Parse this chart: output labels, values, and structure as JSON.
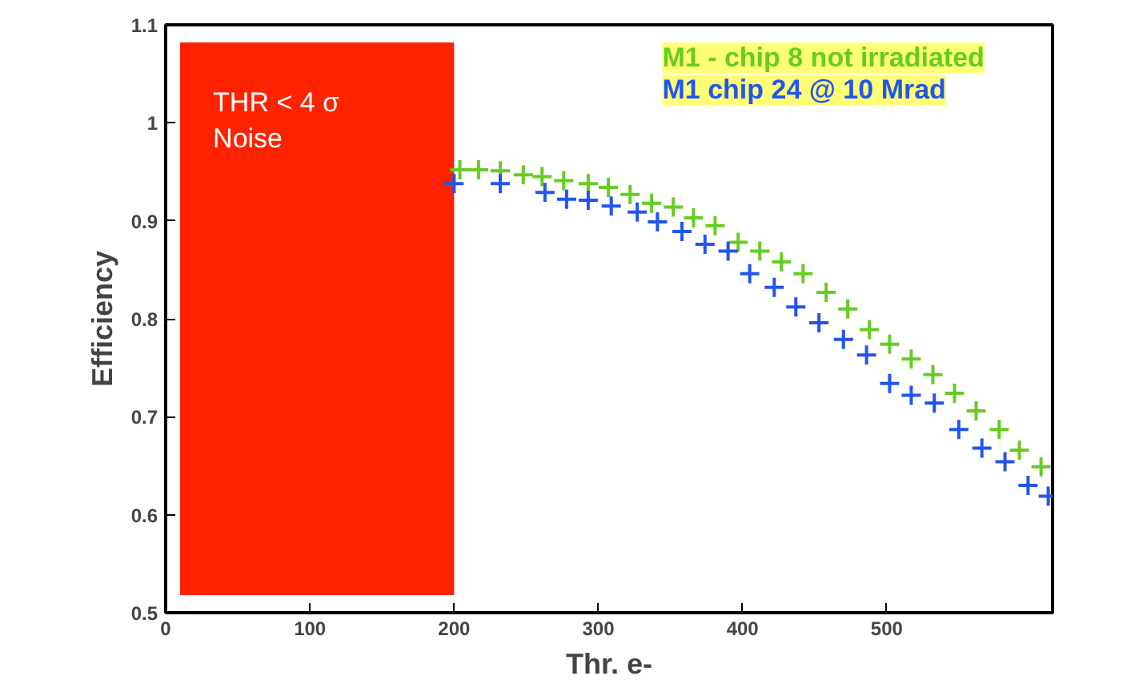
{
  "chart_data": {
    "type": "scatter",
    "xlabel": "Thr. e-",
    "ylabel": "Efficiency",
    "xlim": [
      0,
      615
    ],
    "ylim": [
      0.5,
      1.1
    ],
    "xticks": [
      0,
      100,
      200,
      300,
      400,
      500
    ],
    "yticks": [
      0.5,
      0.6,
      0.7,
      0.8,
      0.9,
      {
        "value": 1.0,
        "label": "1"
      },
      1.1
    ],
    "marker": "cross",
    "grid": false,
    "legend": "top right",
    "bands": [
      {
        "axis": "x",
        "from": 10,
        "to": 200,
        "label": "THR < 4 σ\nNoise",
        "color": "#ff2200"
      }
    ],
    "series": [
      {
        "name": "M1 - chip 8 not irradiated",
        "color": "#66cc22",
        "x": [
          204,
          217,
          232,
          248,
          261,
          276,
          293,
          307,
          322,
          337,
          352,
          366,
          381,
          397,
          412,
          427,
          442,
          458,
          473,
          488,
          502,
          517,
          532,
          547,
          562,
          578,
          592,
          607
        ],
        "values": [
          0.952,
          0.952,
          0.951,
          0.947,
          0.945,
          0.941,
          0.938,
          0.934,
          0.927,
          0.918,
          0.914,
          0.903,
          0.895,
          0.878,
          0.869,
          0.858,
          0.846,
          0.827,
          0.81,
          0.789,
          0.774,
          0.759,
          0.743,
          0.724,
          0.706,
          0.687,
          0.666,
          0.649
        ]
      },
      {
        "name": "M1 chip 24 @ 10 Mrad",
        "color": "#2255ee",
        "x": [
          200,
          232,
          263,
          278,
          293,
          309,
          327,
          341,
          358,
          374,
          390,
          405,
          422,
          437,
          453,
          470,
          486,
          502,
          517,
          533,
          550,
          566,
          582,
          598,
          612
        ],
        "values": [
          0.938,
          0.938,
          0.929,
          0.922,
          0.921,
          0.915,
          0.909,
          0.899,
          0.889,
          0.876,
          0.869,
          0.846,
          0.832,
          0.812,
          0.796,
          0.779,
          0.763,
          0.734,
          0.722,
          0.714,
          0.687,
          0.668,
          0.654,
          0.63,
          0.619
        ]
      }
    ]
  }
}
